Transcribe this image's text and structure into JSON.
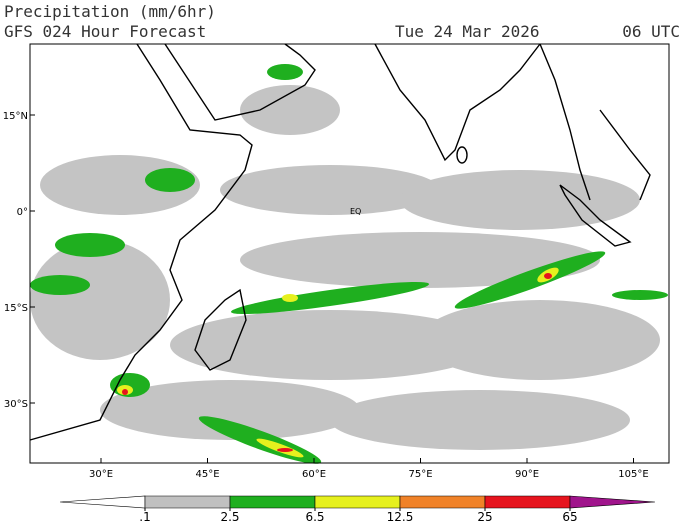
{
  "header": {
    "title": "Precipitation (mm/6hr)",
    "model": "GFS 024 Hour Forecast",
    "date": "Tue 24 Mar 2026",
    "time": "06 UTC"
  },
  "map": {
    "eq_label": "EQ",
    "lon_ticks": [
      {
        "value": 30,
        "label": "30°E"
      },
      {
        "value": 45,
        "label": "45°E"
      },
      {
        "value": 60,
        "label": "60°E"
      },
      {
        "value": 75,
        "label": "75°E"
      },
      {
        "value": 90,
        "label": "90°E"
      },
      {
        "value": 105,
        "label": "105°E"
      }
    ],
    "lat_ticks": [
      {
        "value": 15,
        "label": "15°N"
      },
      {
        "value": 0,
        "label": "0°"
      },
      {
        "value": -15,
        "label": "15°S"
      },
      {
        "value": -30,
        "label": "30°S"
      }
    ]
  },
  "colorbar": {
    "colors": [
      "#ffffff",
      "#c0c0c0",
      "#1faf1f",
      "#e6f01e",
      "#f08228",
      "#e6141e",
      "#a0148c"
    ],
    "ticks": [
      {
        "value": 0.1,
        "label": ".1"
      },
      2.5,
      6.5,
      12.5,
      25,
      65
    ]
  }
}
